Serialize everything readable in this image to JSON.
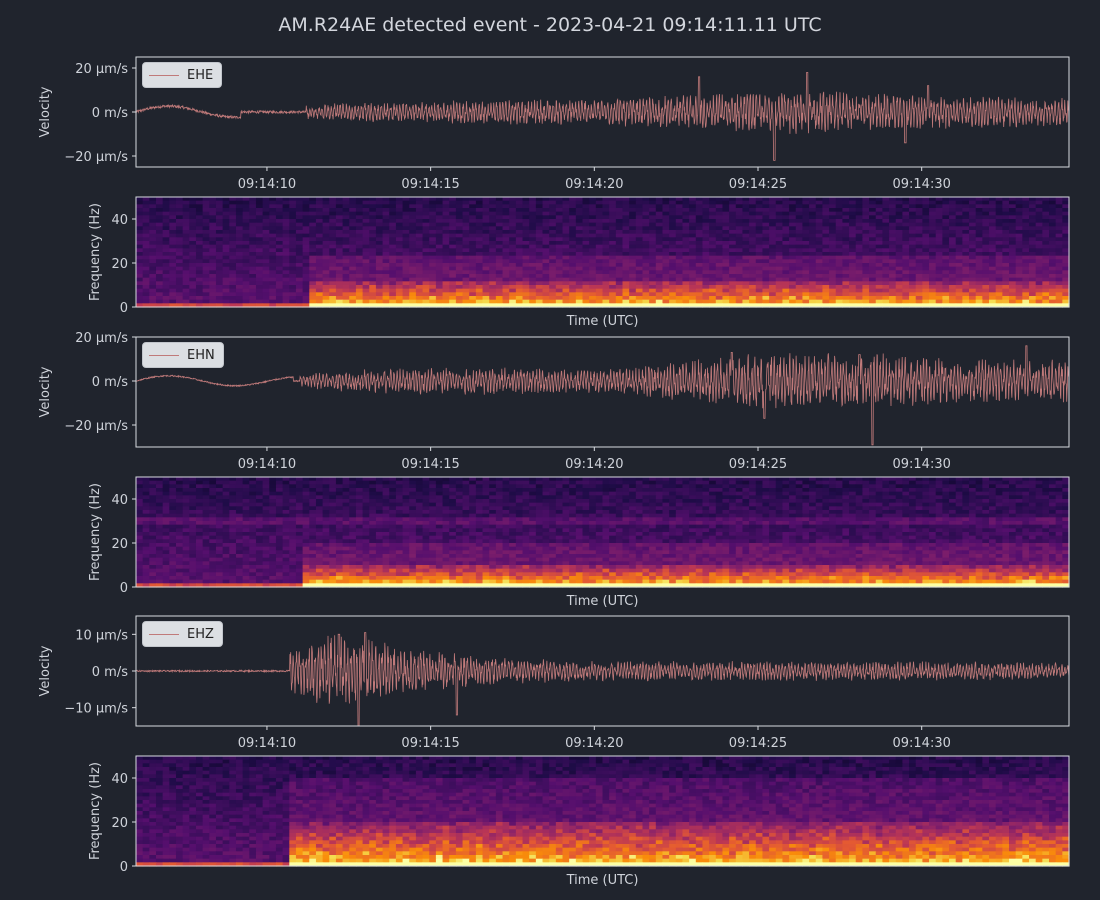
{
  "figure": {
    "title": "AM.R24AE detected event - 2023-04-21 09:14:11.11 UTC",
    "background": "#20242d",
    "axes_edge_color": "#d9dce1",
    "trace_color": "#c07a7a",
    "spectrogram_colormap": "inferno"
  },
  "chart_data": [
    {
      "type": "line",
      "channel": "EHE",
      "legend": "EHE",
      "ylabel": "Velocity",
      "ylim": [
        -25,
        25
      ],
      "yticks": [
        -20,
        0,
        20
      ],
      "ytick_labels": [
        "−20 μm/s",
        "0 m/s",
        "20 μm/s"
      ],
      "xlim": [
        6,
        34.5
      ],
      "xticks": [
        10,
        15,
        20,
        25,
        30
      ],
      "xtick_labels": [
        "09:14:10",
        "09:14:15",
        "09:14:20",
        "09:14:25",
        "09:14:30"
      ],
      "signal": {
        "onset": 11.2,
        "pre_amplitude": 1.2,
        "pre_wave_amplitude": 2.8,
        "pre_wave_end": 9.2,
        "envelope": [
          [
            11.2,
            3
          ],
          [
            12.5,
            4
          ],
          [
            16,
            5
          ],
          [
            20,
            5.5
          ],
          [
            22.5,
            7
          ],
          [
            25,
            9
          ],
          [
            26.5,
            10
          ],
          [
            28,
            8
          ],
          [
            34.5,
            6
          ]
        ],
        "peaks": [
          [
            25.5,
            -22
          ],
          [
            26.5,
            18
          ],
          [
            23.2,
            16
          ],
          [
            29.5,
            -14
          ],
          [
            30.2,
            12
          ]
        ]
      }
    },
    {
      "type": "heatmap",
      "channel": "EHE",
      "ylabel": "Frequency (Hz)",
      "xlabel": "Time (UTC)",
      "ylim": [
        0,
        50
      ],
      "yticks": [
        0,
        20,
        40
      ],
      "ytick_labels": [
        "0",
        "20",
        "40"
      ],
      "onset": 11.2,
      "energy_band_hz": [
        0,
        12
      ]
    },
    {
      "type": "line",
      "channel": "EHN",
      "legend": "EHN",
      "ylabel": "Velocity",
      "ylim": [
        -30,
        20
      ],
      "yticks": [
        -20,
        0,
        20
      ],
      "ytick_labels": [
        "−20 μm/s",
        "0 m/s",
        "20 μm/s"
      ],
      "xlim": [
        6,
        34.5
      ],
      "xticks": [
        10,
        15,
        20,
        25,
        30
      ],
      "xtick_labels": [
        "09:14:10",
        "09:14:15",
        "09:14:20",
        "09:14:25",
        "09:14:30"
      ],
      "signal": {
        "onset": 11.0,
        "pre_amplitude": 0.6,
        "pre_wave_amplitude": 2.5,
        "pre_wave_end": 10.8,
        "envelope": [
          [
            11.0,
            3
          ],
          [
            13,
            5
          ],
          [
            16,
            6
          ],
          [
            20,
            5
          ],
          [
            22.5,
            8
          ],
          [
            24,
            11
          ],
          [
            26,
            12
          ],
          [
            28.5,
            12
          ],
          [
            31,
            9
          ],
          [
            34.5,
            9
          ]
        ],
        "peaks": [
          [
            28.5,
            -29
          ],
          [
            33.2,
            16
          ],
          [
            24.2,
            13
          ],
          [
            25.2,
            -17
          ],
          [
            28.1,
            12
          ]
        ]
      }
    },
    {
      "type": "heatmap",
      "channel": "EHN",
      "ylabel": "Frequency (Hz)",
      "xlabel": "Time (UTC)",
      "ylim": [
        0,
        50
      ],
      "yticks": [
        0,
        20,
        40
      ],
      "ytick_labels": [
        "0",
        "20",
        "40"
      ],
      "onset": 11.0,
      "energy_band_hz": [
        0,
        10
      ]
    },
    {
      "type": "line",
      "channel": "EHZ",
      "legend": "EHZ",
      "ylabel": "Velocity",
      "ylim": [
        -15,
        15
      ],
      "yticks": [
        -10,
        0,
        10
      ],
      "ytick_labels": [
        "−10 μm/s",
        "0 m/s",
        "10 μm/s"
      ],
      "xlim": [
        6,
        34.5
      ],
      "xticks": [
        10,
        15,
        20,
        25,
        30
      ],
      "xtick_labels": [
        "09:14:10",
        "09:14:15",
        "09:14:20",
        "09:14:25",
        "09:14:30"
      ],
      "signal": {
        "onset": 10.7,
        "pre_amplitude": 0.4,
        "pre_wave_amplitude": 0,
        "pre_wave_end": 6,
        "envelope": [
          [
            10.7,
            6
          ],
          [
            11.8,
            9
          ],
          [
            13,
            9
          ],
          [
            14,
            6
          ],
          [
            15.5,
            5
          ],
          [
            17,
            3.5
          ],
          [
            20,
            2.5
          ],
          [
            25,
            2.5
          ],
          [
            30,
            2.5
          ],
          [
            34.5,
            2
          ]
        ],
        "peaks": [
          [
            12.8,
            -15
          ],
          [
            12.2,
            10
          ],
          [
            15.8,
            -12
          ],
          [
            13.0,
            10.5
          ]
        ]
      }
    },
    {
      "type": "heatmap",
      "channel": "EHZ",
      "ylabel": "Frequency (Hz)",
      "xlabel": "Time (UTC)",
      "ylim": [
        0,
        50
      ],
      "yticks": [
        0,
        20,
        40
      ],
      "ytick_labels": [
        "0",
        "20",
        "40"
      ],
      "onset": 10.6,
      "energy_band_hz": [
        0,
        20
      ]
    }
  ]
}
